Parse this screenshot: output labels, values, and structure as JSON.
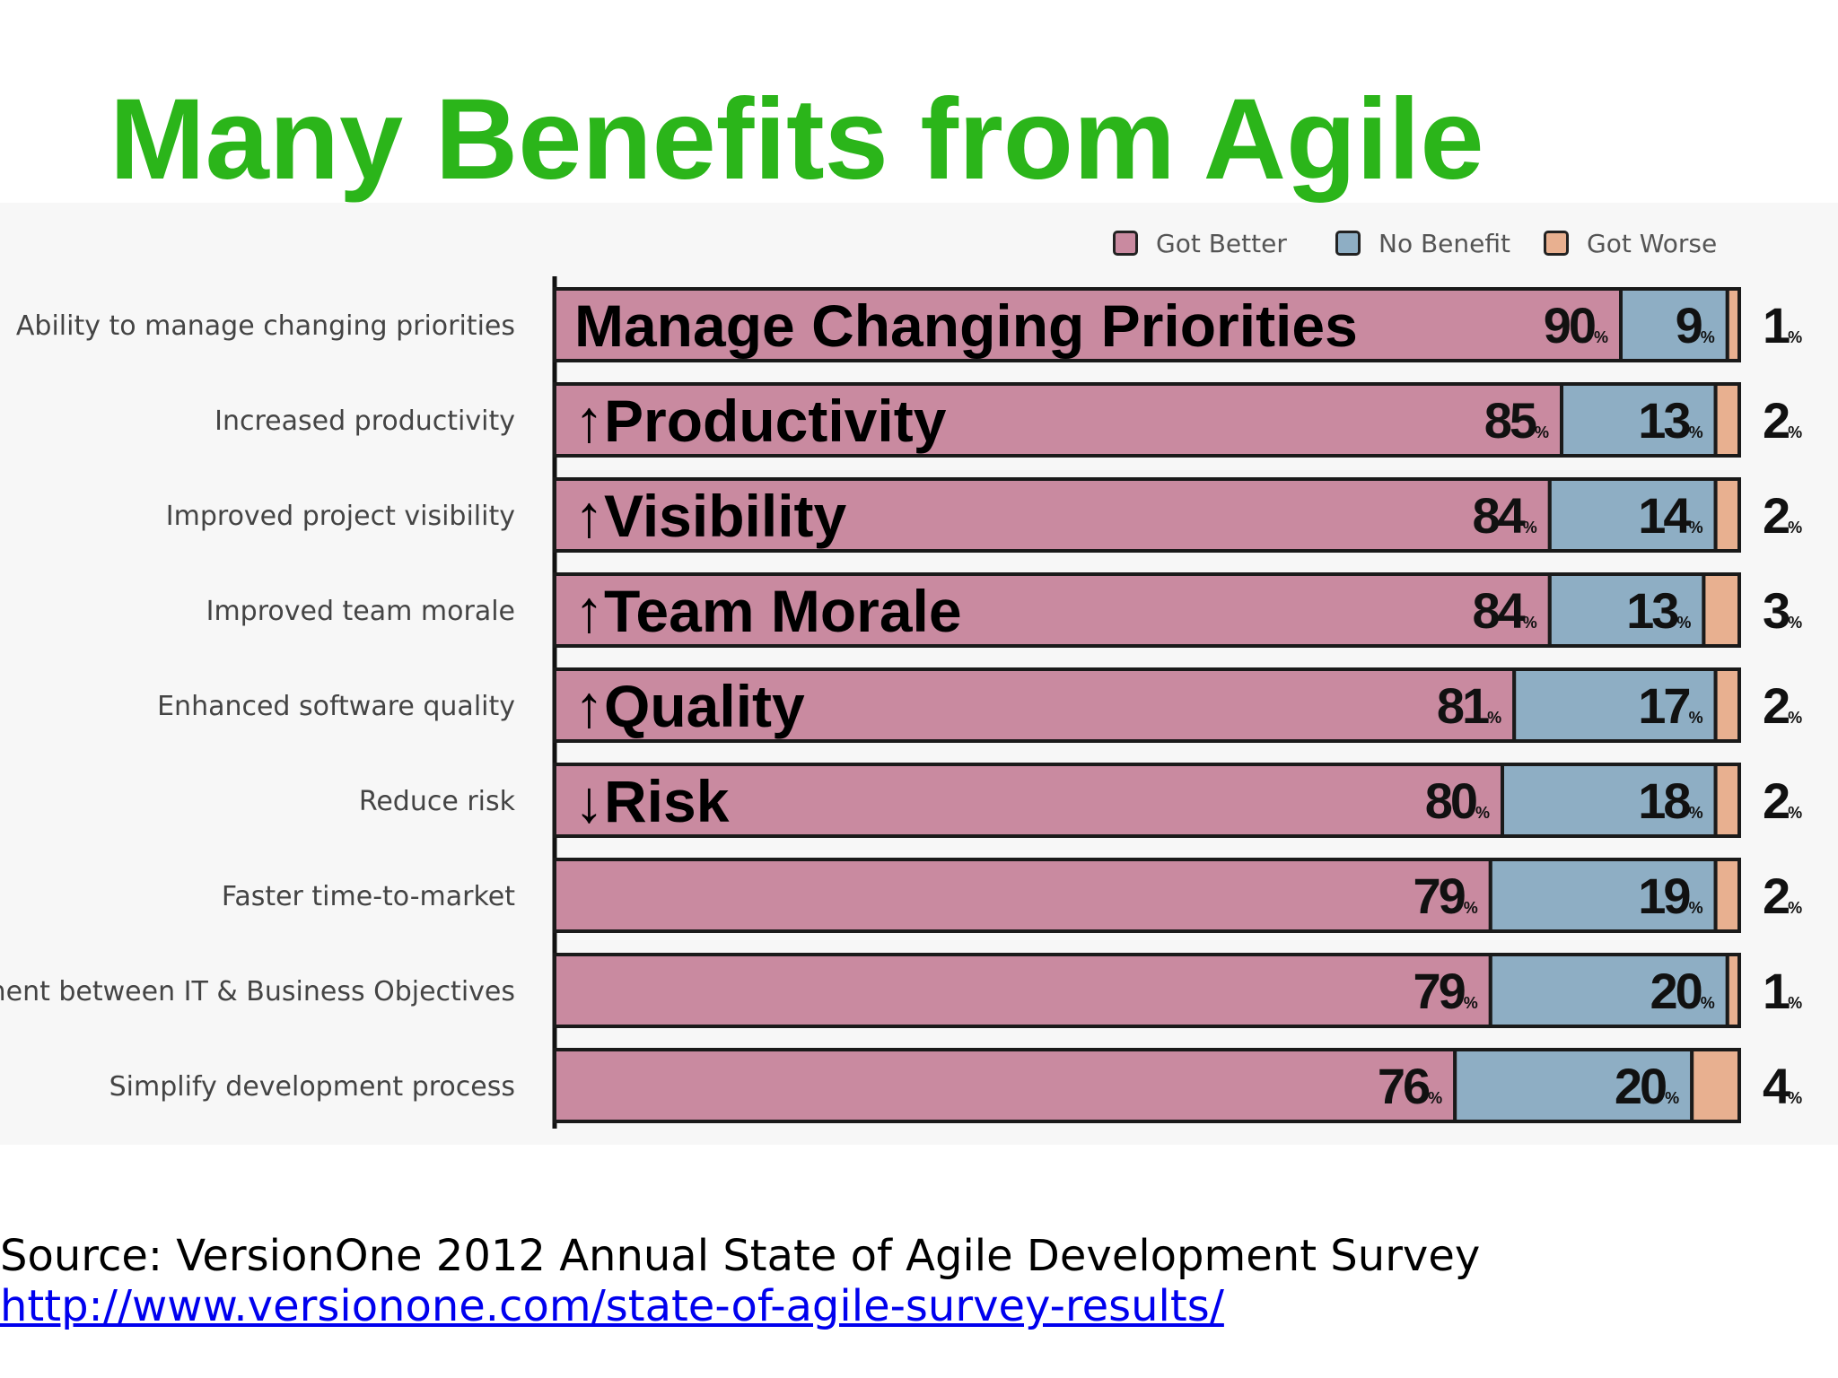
{
  "slide": {
    "title": "Many Benefits from Agile",
    "source_text": "Source: VersionOne 2012 Annual State of Agile Development Survey",
    "source_url": "http://www.versionone.com/state-of-agile-survey-results/"
  },
  "chart_data": {
    "type": "bar",
    "orientation": "horizontal",
    "stacked": true,
    "xlim": [
      0,
      100
    ],
    "value_suffix": "%",
    "legend_position": "top-right",
    "categories": [
      "Ability to manage changing priorities",
      "Increased productivity",
      "Improved project visibility",
      "Improved team morale",
      "Enhanced software quality",
      "Reduce risk",
      "Faster time-to-market",
      "ment between IT & Business Objectives",
      "Simplify development process"
    ],
    "overlay_labels": [
      "Manage Changing Priorities",
      "↑Productivity",
      "↑Visibility",
      "↑Team Morale",
      "↑Quality",
      "↓Risk",
      "",
      "",
      ""
    ],
    "series": [
      {
        "name": "Got Better",
        "color": "#c98aa0",
        "values": [
          90,
          85,
          84,
          84,
          81,
          80,
          79,
          79,
          76
        ]
      },
      {
        "name": "No Benefit",
        "color": "#8eaec4",
        "values": [
          9,
          13,
          14,
          13,
          17,
          18,
          19,
          20,
          20
        ]
      },
      {
        "name": "Got Worse",
        "color": "#e8b090",
        "values": [
          1,
          2,
          2,
          3,
          2,
          2,
          2,
          1,
          4
        ]
      }
    ]
  }
}
